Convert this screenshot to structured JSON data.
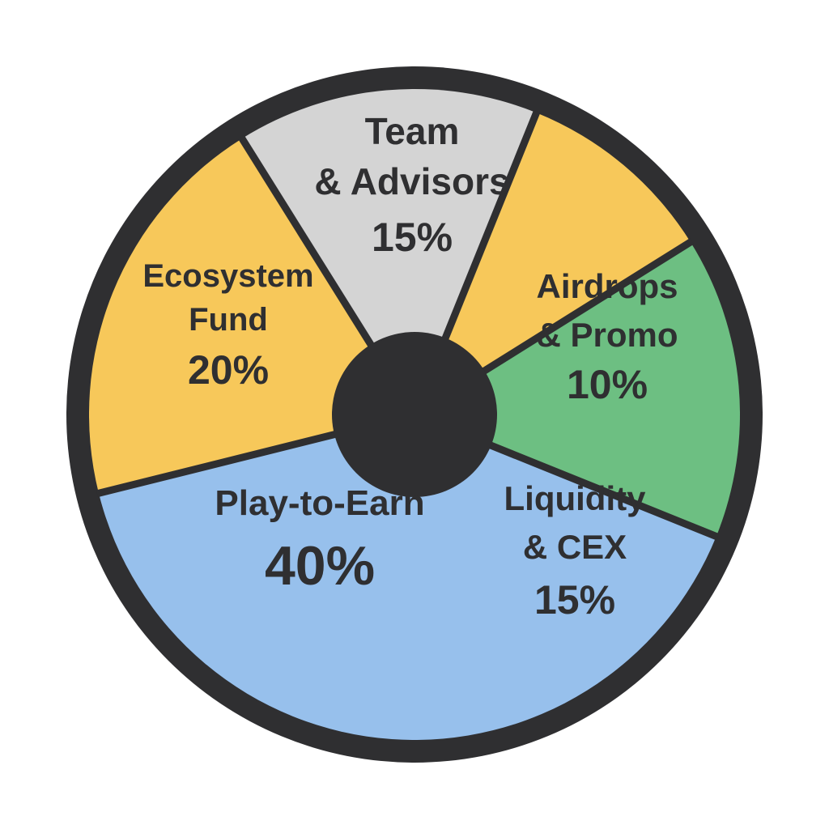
{
  "chart_data": {
    "type": "pie",
    "style": "donut",
    "slices": [
      {
        "label_lines": [
          "Team",
          "& Advisors"
        ],
        "percent_label": "15%",
        "value": 15,
        "color": "#d4d4d4"
      },
      {
        "label_lines": [
          "Airdrops",
          "& Promo"
        ],
        "percent_label": "10%",
        "value": 10,
        "color": "#f7c85a"
      },
      {
        "label_lines": [
          "Liquidity",
          "& CEX"
        ],
        "percent_label": "15%",
        "value": 15,
        "color": "#6dbf82"
      },
      {
        "label_lines": [
          "Play-to-Earn"
        ],
        "percent_label": "40%",
        "value": 40,
        "color": "#97c0ec"
      },
      {
        "label_lines": [
          "Ecosystem",
          "Fund"
        ],
        "percent_label": "20%",
        "value": 20,
        "color": "#f7c85a"
      }
    ],
    "colors": {
      "border": "#2f2f31",
      "center_hole": "#2f2f31",
      "text": "#2f2f31"
    },
    "legend": "none",
    "title": ""
  }
}
